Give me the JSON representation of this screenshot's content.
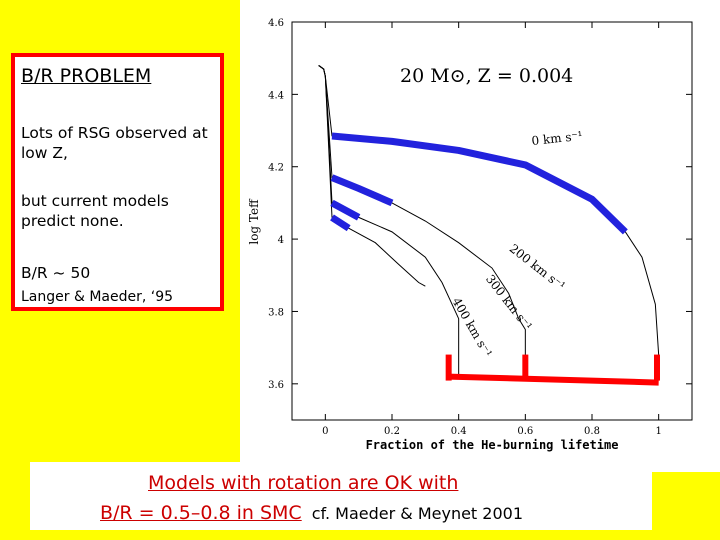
{
  "textbox": {
    "title": "B/R PROBLEM",
    "line1": "Lots of RSG observed at low Z,",
    "line2": "but current models predict none.",
    "ratio": "B/R ~ 50",
    "ref": "Langer & Maeder, ‘95"
  },
  "caption": {
    "line1": "Models with rotation are OK with",
    "line2": "B/R = 0.5–0.8 in SMC",
    "source": "cf. Maeder & Meynet 2001"
  },
  "colors": {
    "yellow": "#ffff00",
    "red": "#ff0000",
    "caption_red": "#cc0000",
    "blue": "#2222dd"
  },
  "chart_data": {
    "type": "line",
    "title": "20 M⊙, Z = 0.004",
    "xlabel": "Fraction of the He-burning lifetime",
    "ylabel": "log Teff",
    "xlim": [
      -0.1,
      1.1
    ],
    "ylim": [
      3.5,
      4.6
    ],
    "xticks": [
      0,
      0.2,
      0.4,
      0.6,
      0.8,
      1
    ],
    "xticklabels": [
      "0",
      "0.2",
      "0.4",
      "0.6",
      "0.8",
      "1"
    ],
    "yticks": [
      3.6,
      3.8,
      4,
      4.2,
      4.4,
      4.6
    ],
    "yticklabels": [
      "3.6",
      "3.8",
      "4",
      "4.2",
      "4.4",
      "4.6"
    ],
    "series": [
      {
        "name": "0 km s⁻¹",
        "x": [
          0.02,
          0.2,
          0.4,
          0.6,
          0.8,
          0.9,
          0.95,
          0.99,
          1.0,
          1.0
        ],
        "y": [
          4.285,
          4.27,
          4.245,
          4.205,
          4.11,
          4.02,
          3.95,
          3.82,
          3.68,
          3.62
        ]
      },
      {
        "name": "200 km s⁻¹",
        "x": [
          0.02,
          0.1,
          0.2,
          0.3,
          0.4,
          0.5,
          0.55,
          0.58,
          0.6,
          0.6
        ],
        "y": [
          4.17,
          4.14,
          4.1,
          4.05,
          3.99,
          3.92,
          3.85,
          3.78,
          3.75,
          3.62
        ]
      },
      {
        "name": "300 km s⁻¹",
        "x": [
          0.02,
          0.1,
          0.2,
          0.3,
          0.35,
          0.38,
          0.4,
          0.4
        ],
        "y": [
          4.1,
          4.06,
          4.02,
          3.95,
          3.88,
          3.82,
          3.78,
          3.62
        ]
      },
      {
        "name": "400 km s⁻¹",
        "x": [
          0.02,
          0.07,
          0.15,
          0.22,
          0.28,
          0.3
        ],
        "y": [
          4.06,
          4.03,
          3.99,
          3.93,
          3.88,
          3.87
        ]
      }
    ],
    "highlight_blue": [
      [
        0.02,
        0.9
      ],
      [
        0.02,
        0.25
      ],
      [
        0.02,
        0.16
      ],
      [
        0.02,
        0.12
      ]
    ],
    "highlight_red": {
      "x": [
        0.37,
        1.0
      ],
      "y": 3.62
    }
  }
}
